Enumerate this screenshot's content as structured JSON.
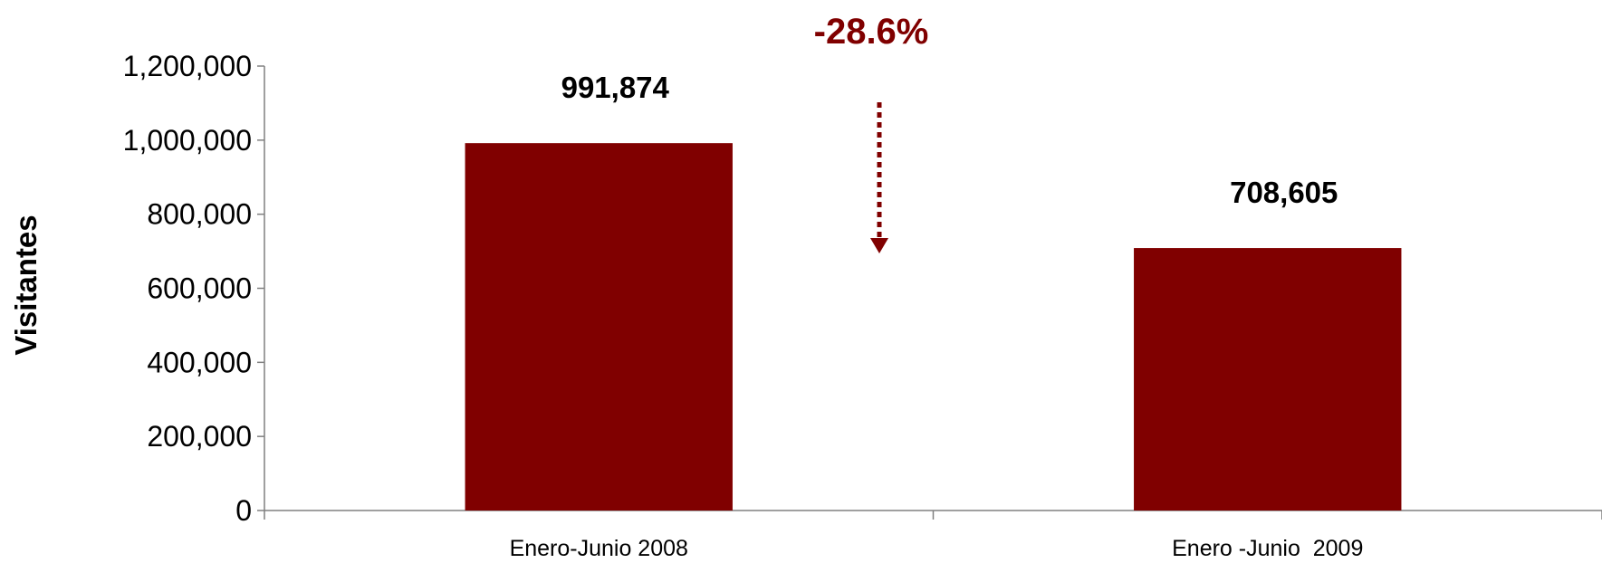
{
  "chart_data": {
    "type": "bar",
    "categories": [
      "Enero-Junio 2008",
      "Enero -Junio  2009"
    ],
    "values": [
      991874,
      708605
    ],
    "value_labels": [
      "991,874",
      "708,605"
    ],
    "ylabel": "Visitantes",
    "xlabel": "",
    "ylim": [
      0,
      1200000
    ],
    "yticks": [
      0,
      200000,
      400000,
      600000,
      800000,
      1000000,
      1200000
    ],
    "ytick_labels": [
      "0",
      "200,000",
      "400,000",
      "600,000",
      "800,000",
      "1,000,000",
      "1,200,000"
    ],
    "grid": false,
    "legend": "none",
    "annotation": {
      "text": "-28.6%",
      "arrow": "down"
    },
    "colors": {
      "bar": "#800000",
      "annotation": "#800000",
      "axis": "#808080"
    }
  }
}
